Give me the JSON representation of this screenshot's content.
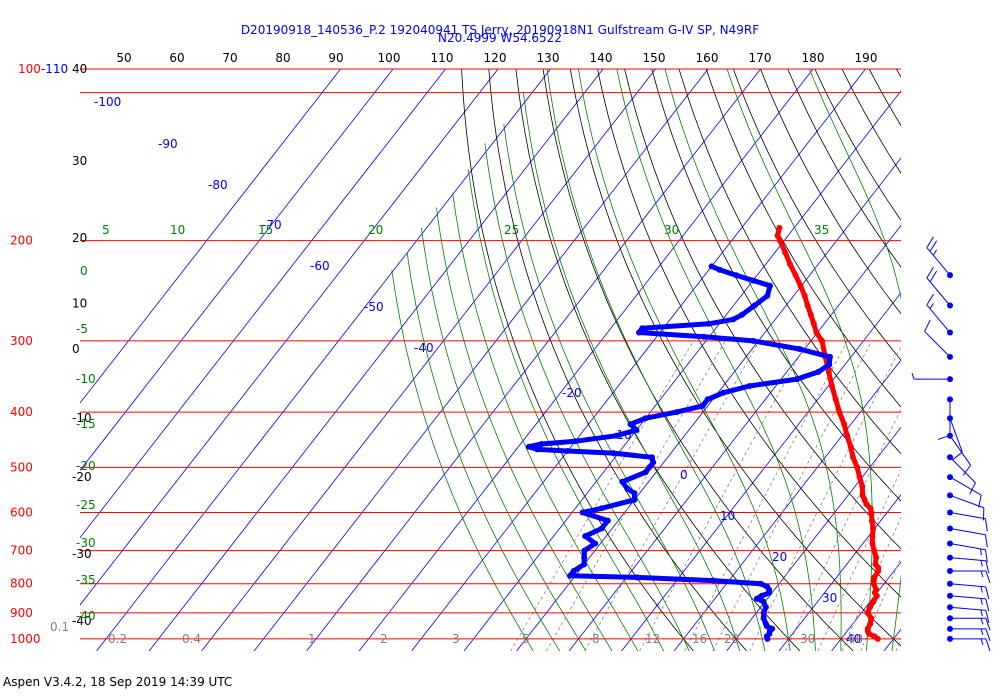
{
  "title_line1": "D20190918_140536_P.2 192040941 TS Jerry, 20190918N1 Gulfstream G-IV SP, N49RF",
  "title_line2": "N20.4999 W54.6522",
  "footer": "Aspen V3.4.2, 18 Sep 2019  14:39 UTC",
  "colors": {
    "temperature": "#ff0000",
    "dewpoint": "#0000ff",
    "isobar": "#ff0000",
    "isotherm": "#0000ff",
    "dry_adiabat": "#000000",
    "moist_adiabat": "#008000",
    "mixing_ratio": "#808080",
    "wind_barb": "#0000ff"
  },
  "chart_data": {
    "type": "skew-t",
    "x_label_top": [
      "50",
      "60",
      "70",
      "80",
      "90",
      "100",
      "110",
      "120",
      "130",
      "140",
      "150",
      "160",
      "170",
      "180",
      "190"
    ],
    "pressure_labels": [
      {
        "label": "100-110",
        "p": 100
      },
      {
        "label": "200",
        "p": 200
      },
      {
        "label": "300",
        "p": 300
      },
      {
        "label": "400",
        "p": 400
      },
      {
        "label": "500",
        "p": 500
      },
      {
        "label": "600",
        "p": 600
      },
      {
        "label": "700",
        "p": 700
      },
      {
        "label": "800",
        "p": 800
      },
      {
        "label": "900",
        "p": 900
      },
      {
        "label": "1000",
        "p": 1000
      }
    ],
    "height_labels": [
      {
        "label": "40",
        "p": 100
      },
      {
        "label": "30",
        "p": 145
      },
      {
        "label": "20",
        "p": 198
      },
      {
        "label": "10",
        "p": 258
      },
      {
        "label": "0",
        "p": 310
      },
      {
        "label": "-10",
        "p": 410
      },
      {
        "label": "-20",
        "p": 520
      },
      {
        "label": "-30",
        "p": 710
      },
      {
        "label": "-40",
        "p": 930
      }
    ],
    "isotherm_labels": [
      "-100",
      "-90",
      "-80",
      "-70",
      "-60",
      "-50",
      "-40",
      "-20",
      "-10",
      "0",
      "10",
      "20",
      "30",
      "40"
    ],
    "moist_adiabat_labels_top": [
      "5",
      "10",
      "15",
      "20",
      "25",
      "30",
      "35"
    ],
    "moist_adiabat_labels_left": [
      "0",
      "-5",
      "-10",
      "-15",
      "-20",
      "-25",
      "-30",
      "-35",
      "-40"
    ],
    "mixing_ratio_labels": [
      "0.1",
      "0.2",
      "0.4",
      "1",
      "2",
      "3",
      "5",
      "8",
      "12",
      "16",
      "20",
      "30",
      "40"
    ],
    "temperature_profile": [
      [
        1000,
        27.0
      ],
      [
        990,
        26.0
      ],
      [
        980,
        24.6
      ],
      [
        970,
        24.0
      ],
      [
        960,
        23.6
      ],
      [
        940,
        23.3
      ],
      [
        920,
        22.7
      ],
      [
        900,
        21.2
      ],
      [
        880,
        20.8
      ],
      [
        860,
        20.6
      ],
      [
        840,
        20.4
      ],
      [
        830,
        19.6
      ],
      [
        820,
        19.4
      ],
      [
        800,
        18.0
      ],
      [
        790,
        17.6
      ],
      [
        780,
        17.2
      ],
      [
        760,
        17.0
      ],
      [
        750,
        16.5
      ],
      [
        740,
        15.5
      ],
      [
        720,
        14.6
      ],
      [
        700,
        13.2
      ],
      [
        680,
        11.8
      ],
      [
        660,
        10.7
      ],
      [
        640,
        9.7
      ],
      [
        620,
        8.3
      ],
      [
        600,
        7.0
      ],
      [
        590,
        6.2
      ],
      [
        580,
        4.8
      ],
      [
        570,
        3.8
      ],
      [
        560,
        2.8
      ],
      [
        540,
        1.4
      ],
      [
        520,
        -0.5
      ],
      [
        500,
        -2.4
      ],
      [
        480,
        -4.7
      ],
      [
        460,
        -6.7
      ],
      [
        440,
        -9.0
      ],
      [
        420,
        -11.3
      ],
      [
        400,
        -14.0
      ],
      [
        380,
        -16.6
      ],
      [
        360,
        -19.3
      ],
      [
        340,
        -22.0
      ],
      [
        320,
        -24.9
      ],
      [
        300,
        -27.9
      ],
      [
        290,
        -30.2
      ],
      [
        280,
        -32.0
      ],
      [
        270,
        -33.9
      ],
      [
        260,
        -35.9
      ],
      [
        250,
        -37.9
      ],
      [
        240,
        -40.2
      ],
      [
        230,
        -42.7
      ],
      [
        220,
        -45.4
      ],
      [
        210,
        -48.0
      ],
      [
        200,
        -50.8
      ],
      [
        196,
        -52.0
      ],
      [
        190,
        -52.8
      ]
    ],
    "dewpoint_profile": [
      [
        1000,
        6.0
      ],
      [
        990,
        5.5
      ],
      [
        980,
        5.6
      ],
      [
        970,
        5.3
      ],
      [
        960,
        5.4
      ],
      [
        950,
        4.0
      ],
      [
        940,
        3.4
      ],
      [
        920,
        2.2
      ],
      [
        900,
        1.4
      ],
      [
        880,
        1.0
      ],
      [
        860,
        -0.3
      ],
      [
        850,
        -2.0
      ],
      [
        840,
        -1.5
      ],
      [
        830,
        -0.5
      ],
      [
        820,
        -1.0
      ],
      [
        810,
        -1.8
      ],
      [
        800,
        -3.5
      ],
      [
        790,
        -13.0
      ],
      [
        780,
        -28.0
      ],
      [
        775,
        -41.0
      ],
      [
        760,
        -41.0
      ],
      [
        740,
        -40.0
      ],
      [
        720,
        -41.0
      ],
      [
        700,
        -42.0
      ],
      [
        680,
        -41.0
      ],
      [
        660,
        -44.0
      ],
      [
        640,
        -42.0
      ],
      [
        620,
        -42.0
      ],
      [
        600,
        -48.0
      ],
      [
        590,
        -45.0
      ],
      [
        570,
        -40.0
      ],
      [
        555,
        -41.0
      ],
      [
        545,
        -43.0
      ],
      [
        530,
        -45.0
      ],
      [
        510,
        -42.0
      ],
      [
        500,
        -42.0
      ],
      [
        490,
        -42.0
      ],
      [
        480,
        -43.0
      ],
      [
        472,
        -51.0
      ],
      [
        468,
        -60.0
      ],
      [
        465,
        -66.0
      ],
      [
        460,
        -68.0
      ],
      [
        455,
        -66.0
      ],
      [
        450,
        -60.0
      ],
      [
        440,
        -53.0
      ],
      [
        430,
        -50.0
      ],
      [
        420,
        -52.0
      ],
      [
        410,
        -50.0
      ],
      [
        400,
        -45.0
      ],
      [
        390,
        -41.0
      ],
      [
        380,
        -41.0
      ],
      [
        370,
        -39.0
      ],
      [
        360,
        -35.0
      ],
      [
        350,
        -27.0
      ],
      [
        340,
        -24.0
      ],
      [
        330,
        -23.0
      ],
      [
        320,
        -24.0
      ],
      [
        310,
        -31.0
      ],
      [
        300,
        -41.0
      ],
      [
        295,
        -51.0
      ],
      [
        290,
        -64.0
      ],
      [
        285,
        -64.0
      ],
      [
        280,
        -52.0
      ],
      [
        275,
        -48.0
      ],
      [
        270,
        -47.0
      ],
      [
        260,
        -46.0
      ],
      [
        250,
        -45.0
      ],
      [
        240,
        -46.0
      ],
      [
        235,
        -50.0
      ],
      [
        230,
        -54.0
      ],
      [
        225,
        -58.0
      ],
      [
        222,
        -60.0
      ]
    ],
    "wind_barbs": [
      {
        "p": 1000,
        "dir": 90,
        "kt": 15
      },
      {
        "p": 960,
        "dir": 90,
        "kt": 15
      },
      {
        "p": 920,
        "dir": 90,
        "kt": 15
      },
      {
        "p": 880,
        "dir": 95,
        "kt": 15
      },
      {
        "p": 840,
        "dir": 95,
        "kt": 15
      },
      {
        "p": 800,
        "dir": 95,
        "kt": 15
      },
      {
        "p": 760,
        "dir": 90,
        "kt": 15
      },
      {
        "p": 720,
        "dir": 95,
        "kt": 15
      },
      {
        "p": 680,
        "dir": 100,
        "kt": 15
      },
      {
        "p": 640,
        "dir": 100,
        "kt": 10
      },
      {
        "p": 600,
        "dir": 100,
        "kt": 10
      },
      {
        "p": 560,
        "dir": 110,
        "kt": 10
      },
      {
        "p": 520,
        "dir": 120,
        "kt": 10
      },
      {
        "p": 480,
        "dir": 135,
        "kt": 10
      },
      {
        "p": 440,
        "dir": 145,
        "kt": 10
      },
      {
        "p": 410,
        "dir": 160,
        "kt": 10
      },
      {
        "p": 380,
        "dir": 180,
        "kt": 10
      },
      {
        "p": 350,
        "dir": 270,
        "kt": 5
      },
      {
        "p": 320,
        "dir": 315,
        "kt": 10
      },
      {
        "p": 290,
        "dir": 320,
        "kt": 15
      },
      {
        "p": 260,
        "dir": 320,
        "kt": 20
      },
      {
        "p": 230,
        "dir": 320,
        "kt": 25
      }
    ]
  }
}
